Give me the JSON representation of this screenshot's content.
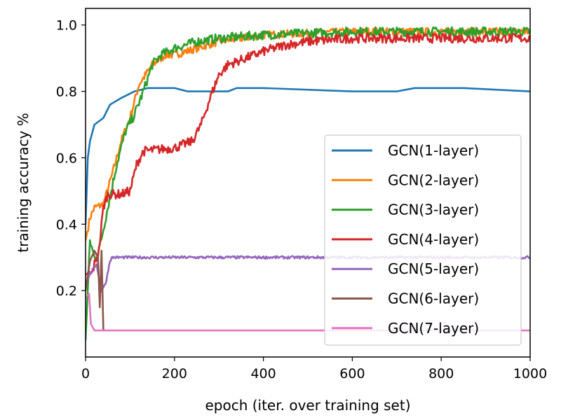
{
  "chart_data": {
    "type": "line",
    "title": "",
    "xlabel": "epoch (iter. over training set)",
    "ylabel": "training accuracy %",
    "xlim": [
      0,
      1000
    ],
    "ylim": [
      0.0,
      1.05
    ],
    "xticks": [
      0,
      200,
      400,
      600,
      800,
      1000
    ],
    "xtick_labels": [
      "0",
      "200",
      "400",
      "600",
      "800",
      "1000"
    ],
    "yticks": [
      0.2,
      0.4,
      0.6,
      0.8,
      1.0
    ],
    "ytick_labels": [
      "0.2",
      "0.4",
      "0.6",
      "0.8",
      "1.0"
    ],
    "legend_position": "lower-right",
    "grid": false,
    "series": [
      {
        "name": "GCN(1-layer)",
        "color": "#1f77b4",
        "noise": 0.0,
        "points": [
          [
            0,
            0.4
          ],
          [
            5,
            0.6
          ],
          [
            10,
            0.65
          ],
          [
            20,
            0.7
          ],
          [
            40,
            0.72
          ],
          [
            55,
            0.76
          ],
          [
            80,
            0.78
          ],
          [
            110,
            0.8
          ],
          [
            140,
            0.81
          ],
          [
            200,
            0.81
          ],
          [
            230,
            0.8
          ],
          [
            320,
            0.8
          ],
          [
            340,
            0.81
          ],
          [
            400,
            0.81
          ],
          [
            600,
            0.8
          ],
          [
            640,
            0.8
          ],
          [
            700,
            0.8
          ],
          [
            740,
            0.81
          ],
          [
            800,
            0.81
          ],
          [
            850,
            0.81
          ],
          [
            1000,
            0.8
          ]
        ]
      },
      {
        "name": "GCN(2-layer)",
        "color": "#ff7f0e",
        "noise": 0.012,
        "points": [
          [
            0,
            0.35
          ],
          [
            10,
            0.42
          ],
          [
            20,
            0.45
          ],
          [
            40,
            0.46
          ],
          [
            60,
            0.55
          ],
          [
            80,
            0.65
          ],
          [
            100,
            0.72
          ],
          [
            120,
            0.82
          ],
          [
            150,
            0.88
          ],
          [
            180,
            0.91
          ],
          [
            200,
            0.91
          ],
          [
            250,
            0.93
          ],
          [
            300,
            0.95
          ],
          [
            400,
            0.97
          ],
          [
            600,
            0.98
          ],
          [
            800,
            0.98
          ],
          [
            1000,
            0.98
          ]
        ]
      },
      {
        "name": "GCN(3-layer)",
        "color": "#2ca02c",
        "noise": 0.014,
        "points": [
          [
            0,
            0.05
          ],
          [
            10,
            0.35
          ],
          [
            20,
            0.3
          ],
          [
            30,
            0.32
          ],
          [
            50,
            0.45
          ],
          [
            70,
            0.58
          ],
          [
            90,
            0.68
          ],
          [
            110,
            0.73
          ],
          [
            130,
            0.8
          ],
          [
            150,
            0.88
          ],
          [
            170,
            0.91
          ],
          [
            200,
            0.93
          ],
          [
            250,
            0.95
          ],
          [
            300,
            0.96
          ],
          [
            400,
            0.97
          ],
          [
            600,
            0.98
          ],
          [
            800,
            0.98
          ],
          [
            1000,
            0.98
          ]
        ]
      },
      {
        "name": "GCN(4-layer)",
        "color": "#d62728",
        "noise": 0.014,
        "points": [
          [
            0,
            0.25
          ],
          [
            15,
            0.25
          ],
          [
            20,
            0.28
          ],
          [
            30,
            0.32
          ],
          [
            40,
            0.45
          ],
          [
            50,
            0.49
          ],
          [
            80,
            0.49
          ],
          [
            100,
            0.5
          ],
          [
            115,
            0.58
          ],
          [
            130,
            0.62
          ],
          [
            200,
            0.63
          ],
          [
            240,
            0.65
          ],
          [
            260,
            0.7
          ],
          [
            280,
            0.78
          ],
          [
            300,
            0.85
          ],
          [
            320,
            0.88
          ],
          [
            360,
            0.9
          ],
          [
            400,
            0.92
          ],
          [
            450,
            0.94
          ],
          [
            500,
            0.95
          ],
          [
            600,
            0.96
          ],
          [
            800,
            0.96
          ],
          [
            1000,
            0.96
          ]
        ]
      },
      {
        "name": "GCN(5-layer)",
        "color": "#9467bd",
        "noise": 0.004,
        "points": [
          [
            0,
            0.22
          ],
          [
            10,
            0.25
          ],
          [
            25,
            0.28
          ],
          [
            35,
            0.2
          ],
          [
            45,
            0.22
          ],
          [
            55,
            0.29
          ],
          [
            60,
            0.3
          ],
          [
            1000,
            0.3
          ]
        ]
      },
      {
        "name": "GCN(6-layer)",
        "color": "#8c564b",
        "noise": 0.0,
        "points": [
          [
            0,
            0.2
          ],
          [
            10,
            0.29
          ],
          [
            20,
            0.32
          ],
          [
            28,
            0.3
          ],
          [
            32,
            0.15
          ],
          [
            36,
            0.32
          ],
          [
            40,
            0.08
          ],
          [
            42,
            0.08
          ]
        ]
      },
      {
        "name": "GCN(7-layer)",
        "color": "#e377c2",
        "noise": 0.0,
        "points": [
          [
            0,
            0.18
          ],
          [
            8,
            0.19
          ],
          [
            12,
            0.1
          ],
          [
            20,
            0.08
          ],
          [
            1000,
            0.08
          ]
        ]
      }
    ]
  }
}
